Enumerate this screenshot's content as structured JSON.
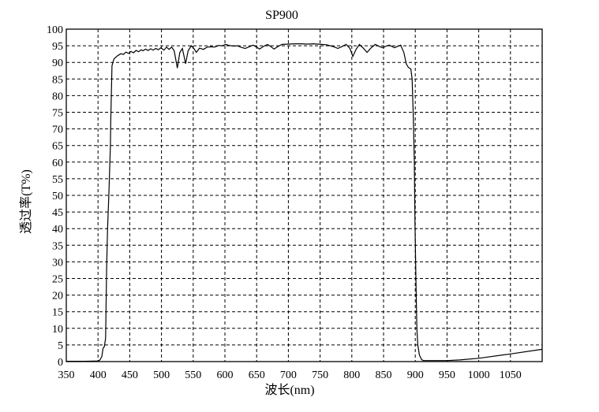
{
  "chart_data": {
    "type": "line",
    "title": "SP900",
    "xlabel": "波长(nm)",
    "ylabel": "透过率(T%)",
    "xlim": [
      350,
      1100
    ],
    "ylim": [
      0,
      100
    ],
    "xticks": [
      350,
      400,
      450,
      500,
      550,
      600,
      650,
      700,
      750,
      800,
      850,
      900,
      950,
      1000,
      1050
    ],
    "yticks": [
      0,
      5,
      10,
      15,
      20,
      25,
      30,
      35,
      40,
      45,
      50,
      55,
      60,
      65,
      70,
      75,
      80,
      85,
      90,
      95,
      100
    ],
    "grid": true,
    "line_color": "#000000",
    "series": [
      {
        "x": [
          350,
          380,
          400,
          403,
          406,
          408,
          410,
          412,
          413.6,
          415,
          417,
          419.5,
          420,
          422,
          425,
          430,
          436,
          440,
          444,
          448,
          452,
          456,
          460,
          464,
          468,
          471,
          475,
          479,
          483,
          487,
          491,
          495,
          499,
          504,
          508,
          512,
          516,
          520,
          525,
          529,
          533,
          538,
          542,
          547,
          551,
          555,
          560,
          566,
          572,
          578,
          584,
          590,
          596,
          601,
          607,
          613,
          619.5,
          626,
          632,
          638,
          644.5,
          650,
          654.5,
          661,
          667,
          672,
          677.4,
          684,
          690,
          700,
          710,
          720,
          730,
          740,
          752,
          760,
          768,
          773,
          778,
          785,
          791,
          797,
          801.6,
          807,
          812,
          818,
          824,
          830,
          837,
          843,
          849,
          854,
          859,
          863,
          867,
          872,
          877,
          882,
          886,
          889,
          893,
          895,
          897,
          898.5,
          899.5,
          901,
          902.5,
          904,
          906.5,
          910,
          913,
          930,
          950,
          970,
          1000,
          1050,
          1100
        ],
        "y": [
          0.1,
          0.1,
          0.2,
          0.5,
          1.5,
          4,
          4.5,
          7,
          28,
          40,
          50,
          65,
          72,
          89,
          91,
          91.9,
          92.6,
          92.4,
          93.1,
          92.7,
          93.3,
          92.9,
          93.6,
          93.2,
          93.8,
          93.5,
          94.0,
          93.6,
          94.1,
          93.7,
          94.2,
          93.8,
          94.4,
          93.7,
          94.6,
          93.9,
          94.6,
          93.5,
          88.3,
          93,
          94.2,
          89.6,
          93.5,
          95,
          94.2,
          93,
          94.3,
          93.9,
          94.6,
          94.7,
          94.6,
          95.1,
          95.0,
          95.4,
          95.1,
          94.9,
          95.0,
          94.5,
          94.2,
          94.7,
          95.2,
          94.6,
          94,
          94.8,
          95.4,
          94.8,
          94,
          94.8,
          95.4,
          95.5,
          95.6,
          95.6,
          95.5,
          95.6,
          95.4,
          95.3,
          94.9,
          94.6,
          94.2,
          94.8,
          95.4,
          94.2,
          91.8,
          94.0,
          95.4,
          94.3,
          93,
          94.3,
          95.4,
          94.8,
          94.4,
          94.9,
          95.2,
          94.8,
          94.4,
          94.8,
          95.2,
          93,
          89.5,
          88.5,
          88,
          85,
          73,
          60,
          42,
          25,
          10,
          5,
          2,
          0.6,
          0.3,
          0.3,
          0.3,
          0.5,
          1.0,
          2.3,
          3.7
        ]
      }
    ]
  }
}
